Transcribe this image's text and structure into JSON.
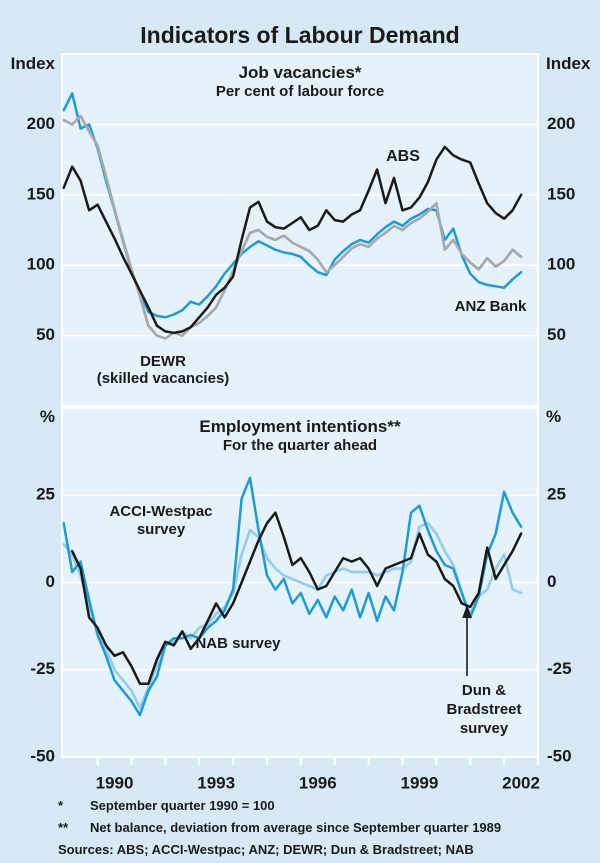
{
  "title": "Indicators of Labour Demand",
  "colors": {
    "background": "#d7e9f5",
    "plot_background": "#e5f2fb",
    "grid": "#ffffff",
    "text": "#1a1a1a",
    "abs_black": "#1a1a1a",
    "anz_blue": "#1e9bd7",
    "dewr_gray": "#a7a9ac",
    "acci_blue": "#1e9bd7",
    "nab_black": "#1a1a1a",
    "dnb_light_blue": "#96cdee"
  },
  "chart_data": [
    {
      "type": "line",
      "panel": "top",
      "title": "Job vacancies*",
      "subtitle": "Per cent of labour force",
      "ylabel_left": "Index",
      "ylabel_right": "Index",
      "ylim": [
        0,
        250
      ],
      "yticks": [
        50,
        100,
        150,
        200
      ],
      "xlim": [
        1988.95,
        2003.0
      ],
      "x_start": 1989.0,
      "x_step": 0.25,
      "grid": true,
      "legend_position": "inline-annotations",
      "annotations": {
        "abs": "ABS",
        "anz": "ANZ Bank",
        "dewr_name": "DEWR",
        "dewr_detail": "(skilled vacancies)"
      },
      "series": [
        {
          "name": "ANZ Bank",
          "color": "#1e9bd7",
          "width": 2.5,
          "values": [
            210,
            222,
            197,
            200,
            183,
            160,
            139,
            117,
            96,
            80,
            67,
            64,
            63,
            65,
            68,
            74,
            72,
            78,
            85,
            94,
            101,
            108,
            113,
            117,
            114,
            111,
            109,
            108,
            106,
            100,
            95,
            93,
            104,
            110,
            115,
            118,
            116,
            122,
            127,
            131,
            128,
            133,
            136,
            140,
            139,
            118,
            126,
            107,
            94,
            88,
            86,
            85,
            84,
            90,
            95
          ]
        },
        {
          "name": "DEWR (skilled vacancies)",
          "color": "#a7a9ac",
          "width": 2.7,
          "values": [
            203,
            200,
            206,
            195,
            185,
            163,
            140,
            118,
            97,
            78,
            57,
            50,
            48,
            52,
            50,
            56,
            59,
            64,
            70,
            82,
            96,
            110,
            123,
            125,
            120,
            118,
            121,
            116,
            113,
            110,
            104,
            95,
            100,
            106,
            112,
            115,
            113,
            119,
            123,
            128,
            125,
            130,
            133,
            138,
            144,
            111,
            118,
            108,
            102,
            97,
            105,
            99,
            103,
            111,
            106
          ]
        },
        {
          "name": "ABS",
          "color": "#1a1a1a",
          "width": 2.5,
          "values": [
            155,
            170,
            160,
            139,
            143,
            131,
            119,
            106,
            94,
            82,
            70,
            57,
            53,
            52,
            53,
            56,
            63,
            70,
            79,
            84,
            92,
            118,
            141,
            145,
            131,
            127,
            126,
            130,
            134,
            125,
            128,
            139,
            132,
            131,
            136,
            139,
            153,
            168,
            144,
            162,
            139,
            141,
            148,
            159,
            175,
            184,
            178,
            175,
            173,
            158,
            144,
            137,
            133,
            139,
            150
          ]
        }
      ]
    },
    {
      "type": "line",
      "panel": "bottom",
      "title": "Employment intentions**",
      "subtitle": "For the quarter ahead",
      "ylabel_left": "%",
      "ylabel_right": "%",
      "ylim": [
        -50,
        50
      ],
      "yticks": [
        -50,
        -25,
        0,
        25
      ],
      "xlim": [
        1988.95,
        2003.0
      ],
      "x_start": 1989.0,
      "x_step": 0.25,
      "grid": true,
      "xticks": [
        1990,
        1991,
        1992,
        1993,
        1994,
        1995,
        1996,
        1997,
        1998,
        1999,
        2000,
        2001,
        2002,
        2003
      ],
      "xtick_labels": [
        {
          "text": "1990",
          "x": 1990.5
        },
        {
          "text": "1993",
          "x": 1993.5
        },
        {
          "text": "1996",
          "x": 1996.5
        },
        {
          "text": "1999",
          "x": 1999.5
        },
        {
          "text": "2002",
          "x": 2002.5
        }
      ],
      "annotations": {
        "acci": "ACCI-Westpac survey",
        "nab": "NAB survey",
        "dnb": "Dun & Bradstreet survey"
      },
      "series": [
        {
          "name": "Dun & Bradstreet survey",
          "color": "#96cdee",
          "width": 2.7,
          "values": [
            11,
            8,
            2,
            -7,
            -14,
            -19,
            -25,
            -28,
            -31,
            -36,
            -30,
            -24,
            -18,
            -17,
            -14,
            -16,
            -13,
            -12,
            -9,
            -7,
            -3,
            8,
            15,
            13,
            7,
            4,
            2,
            1,
            0,
            -1,
            -2,
            2,
            3,
            4,
            3,
            3,
            3,
            2,
            3,
            4,
            4,
            6,
            16,
            17,
            14,
            9,
            5,
            -3,
            -9,
            -4,
            -2,
            4,
            8,
            -2,
            -3
          ]
        },
        {
          "name": "ACCI-Westpac survey",
          "color": "#1e9bd7",
          "width": 2.5,
          "values": [
            17,
            3,
            6,
            -5,
            -15,
            -21,
            -28,
            -31,
            -34,
            -38,
            -31,
            -27,
            -18,
            -16,
            -16,
            -15,
            -16,
            -13,
            -11,
            -8,
            -2,
            24,
            30,
            15,
            2,
            -2,
            1,
            -6,
            -3,
            -9,
            -5,
            -10,
            -4,
            -8,
            -2,
            -10,
            -3,
            -11,
            -4,
            -8,
            3,
            20,
            22,
            15,
            9,
            5,
            4,
            -3,
            -10,
            -4,
            8,
            14,
            26,
            20,
            16
          ]
        },
        {
          "name": "NAB survey",
          "color": "#1a1a1a",
          "width": 2.5,
          "x_start": 1989.25,
          "values": [
            9,
            4,
            -10,
            -13,
            -18,
            -21,
            -20,
            -24,
            -29,
            -29,
            -22,
            -17,
            -18,
            -14,
            -19,
            -16,
            -11,
            -6,
            -10,
            -6,
            0,
            6,
            12,
            17,
            20,
            13,
            5,
            7,
            3,
            -2,
            -1,
            3,
            7,
            6,
            7,
            4,
            -1,
            4,
            5,
            6,
            7,
            14,
            8,
            6,
            1,
            -1,
            -6,
            -7,
            -3,
            10,
            1,
            5,
            9,
            14
          ]
        }
      ]
    }
  ],
  "footnotes": [
    {
      "marker": "*",
      "text": "September quarter 1990 = 100"
    },
    {
      "marker": "**",
      "text": "Net balance, deviation from average since September quarter 1989"
    }
  ],
  "source_line": "Sources: ABS; ACCI-Westpac; ANZ; DEWR; Dun & Bradstreet; NAB"
}
